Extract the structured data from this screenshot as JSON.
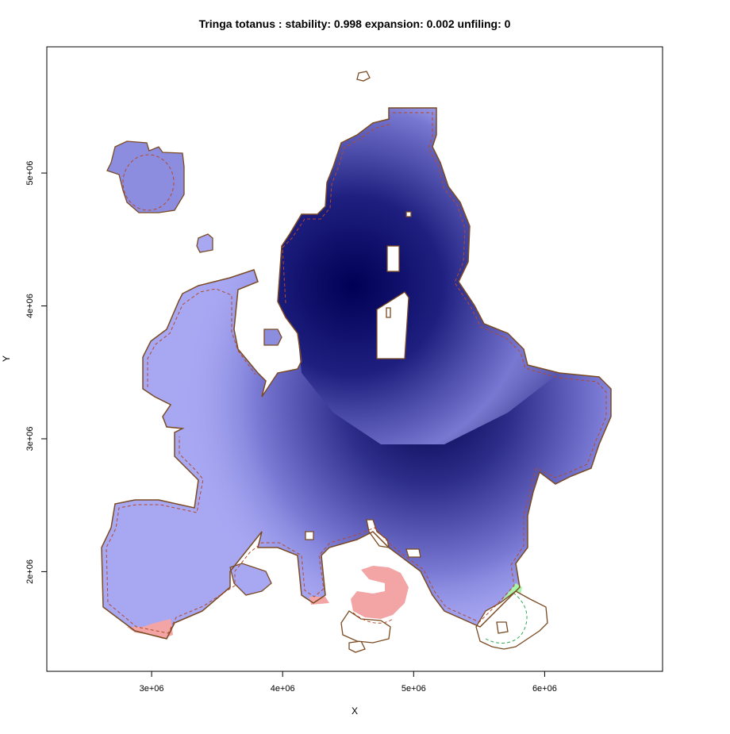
{
  "chart_data": {
    "type": "heatmap",
    "title": "Tringa totanus : stability: 0.998 expansion: 0.002 unfiling: 0",
    "xlabel": "X",
    "ylabel": "Y",
    "x_ticks": [
      "3e+06",
      "4e+06",
      "5e+06",
      "6e+06"
    ],
    "y_ticks": [
      "2e+06",
      "3e+06",
      "4e+06",
      "5e+06"
    ],
    "x_tick_values": [
      3000000,
      4000000,
      5000000,
      6000000
    ],
    "y_tick_values": [
      2000000,
      3000000,
      4000000,
      5000000
    ],
    "xlim": [
      2200000,
      6900000
    ],
    "ylim": [
      1250000,
      5950000
    ],
    "colors": {
      "density_low": "#a7a7f2",
      "density_high": "#00004a",
      "unfilling": "#f3a5a5",
      "expansion": "#a8f4a8",
      "outline": "#7a4a22",
      "dashed": "#b44a2a",
      "dashed_green": "#2faa55"
    },
    "density_centers": [
      {
        "x": 5100000,
        "y": 3250000,
        "weight": 1.0
      },
      {
        "x": 4550000,
        "y": 4000000,
        "weight": 1.0
      }
    ]
  }
}
